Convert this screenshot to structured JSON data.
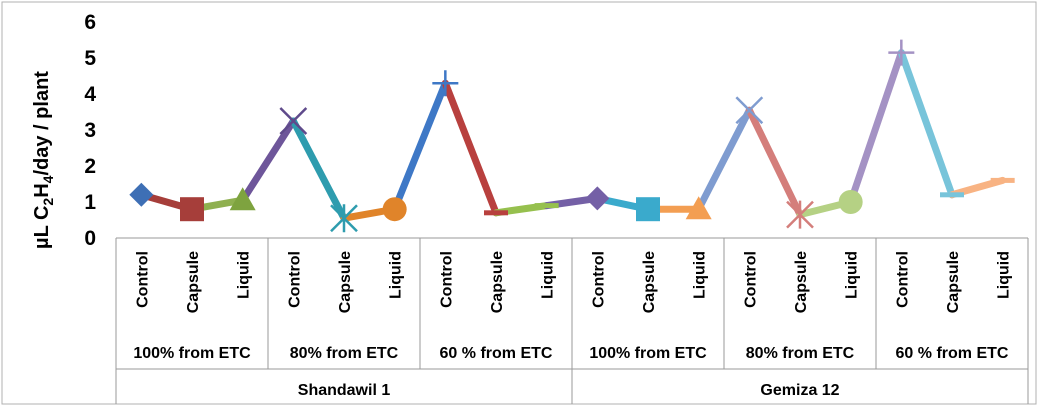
{
  "chart_data": {
    "type": "line",
    "ylabel_parts": {
      "a": "µL C",
      "sub1": "2",
      "b": "H",
      "sub2": "4",
      "c": "/day / plant"
    },
    "ylim": [
      0,
      6
    ],
    "yticks": [
      "0",
      "1",
      "2",
      "3",
      "4",
      "5",
      "6"
    ],
    "categories": [
      "Control",
      "Capsule",
      "Liquid",
      "Control",
      "Capsule",
      "Liquid",
      "Control",
      "Capsule",
      "Liquid",
      "Control",
      "Capsule",
      "Liquid",
      "Control",
      "Capsule",
      "Liquid",
      "Control",
      "Capsule",
      "Liquid"
    ],
    "irrigation_groups": [
      "100% from ETC",
      "80% from ETC",
      "60 % from ETC",
      "100% from ETC",
      "80% from ETC",
      "60 % from ETC"
    ],
    "cultivars": [
      "Shandawil 1",
      "Gemiza 12"
    ],
    "values": [
      1.2,
      0.8,
      1.05,
      3.25,
      0.55,
      0.8,
      4.3,
      0.7,
      0.9,
      1.1,
      0.8,
      0.8,
      3.55,
      0.65,
      1.0,
      5.15,
      1.2,
      1.6
    ],
    "segment_colors": [
      "#A63E3A",
      "#8FB050",
      "#6E569A",
      "#2E9CAE",
      "#E0842A",
      "#3E78C6",
      "#B8403E",
      "#96C04E",
      "#7460A6",
      "#3AAACC",
      "#F39E52",
      "#7F9CD0",
      "#D47E7B",
      "#B5D184",
      "#A492C4",
      "#78C4DA",
      "#F8B383"
    ],
    "markers": [
      {
        "shape": "diamond",
        "color": "#3E6FB5"
      },
      {
        "shape": "square",
        "color": "#A63E3A"
      },
      {
        "shape": "triangle",
        "color": "#7EA33F"
      },
      {
        "shape": "x",
        "color": "#5F4A8B"
      },
      {
        "shape": "star",
        "color": "#2E9CAE"
      },
      {
        "shape": "circle",
        "color": "#E0842A"
      },
      {
        "shape": "plus",
        "color": "#3E78C6"
      },
      {
        "shape": "dash",
        "color": "#B8403E"
      },
      {
        "shape": "dash",
        "color": "#96C04E"
      },
      {
        "shape": "diamond",
        "color": "#7460A6"
      },
      {
        "shape": "square",
        "color": "#3AAACC"
      },
      {
        "shape": "triangle",
        "color": "#F39E52"
      },
      {
        "shape": "x",
        "color": "#7F9CD0"
      },
      {
        "shape": "star",
        "color": "#D47E7B"
      },
      {
        "shape": "circle",
        "color": "#B5D184"
      },
      {
        "shape": "plus",
        "color": "#A492C4"
      },
      {
        "shape": "dash",
        "color": "#78C4DA"
      },
      {
        "shape": "dash",
        "color": "#F8B383"
      }
    ],
    "grid": false,
    "legend": "none"
  }
}
